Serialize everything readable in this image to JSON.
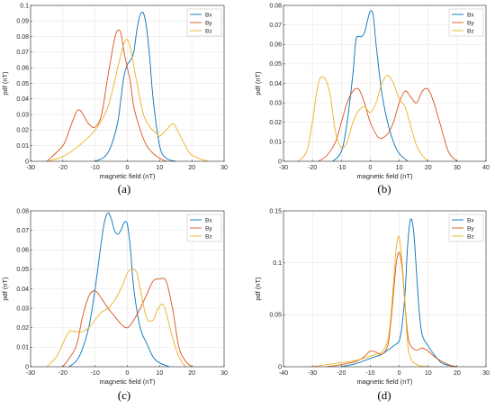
{
  "colors": {
    "Bx": "#0072BD",
    "By": "#D95319",
    "Bz": "#EDB120",
    "grid": "#e6e6e6",
    "axis": "#262626"
  },
  "chart_data": [
    {
      "type": "line",
      "panel_label": "(a)",
      "xlabel": "magnetic field (nT)",
      "ylabel": "pdf (nT)",
      "xlim": [
        -30,
        30
      ],
      "ylim": [
        0,
        0.1
      ],
      "xticks": [
        -30,
        -20,
        -10,
        0,
        10,
        20,
        30
      ],
      "yticks": [
        0,
        0.01,
        0.02,
        0.03,
        0.04,
        0.05,
        0.06,
        0.07,
        0.08,
        0.09,
        0.1
      ],
      "xtick_labels": [
        "-30",
        "-20",
        "-10",
        "0",
        "10",
        "20",
        "30"
      ],
      "ytick_labels": [
        "0",
        "0.01",
        "0.02",
        "0.03",
        "0.04",
        "0.05",
        "0.06",
        "0.07",
        "0.08",
        "0.09",
        "0.1"
      ],
      "grid": true,
      "legend_position": "top-right",
      "series": [
        {
          "name": "Bx",
          "x": [
            -10,
            -7,
            -5,
            -3,
            -2,
            -1,
            0,
            1,
            2,
            3,
            4,
            5,
            6,
            7,
            8,
            10,
            12,
            15
          ],
          "y": [
            0,
            0.003,
            0.01,
            0.025,
            0.04,
            0.055,
            0.062,
            0.065,
            0.07,
            0.085,
            0.094,
            0.095,
            0.085,
            0.065,
            0.04,
            0.01,
            0.002,
            0
          ]
        },
        {
          "name": "By",
          "x": [
            -25,
            -20,
            -18,
            -16,
            -15,
            -14,
            -12,
            -10,
            -8,
            -6,
            -4,
            -3,
            -2,
            -1,
            0,
            1,
            2,
            4,
            6,
            8,
            10,
            12
          ],
          "y": [
            0,
            0.01,
            0.02,
            0.031,
            0.033,
            0.031,
            0.024,
            0.022,
            0.03,
            0.055,
            0.078,
            0.084,
            0.082,
            0.07,
            0.06,
            0.05,
            0.035,
            0.02,
            0.01,
            0.005,
            0.002,
            0
          ]
        },
        {
          "name": "Bz",
          "x": [
            -25,
            -20,
            -15,
            -10,
            -6,
            -3,
            -2,
            -1,
            0,
            1,
            3,
            5,
            7,
            9,
            10,
            12,
            14,
            15,
            18,
            20,
            25
          ],
          "y": [
            0,
            0.003,
            0.01,
            0.02,
            0.035,
            0.06,
            0.068,
            0.076,
            0.078,
            0.072,
            0.05,
            0.03,
            0.022,
            0.018,
            0.016,
            0.02,
            0.024,
            0.022,
            0.01,
            0.004,
            0
          ]
        }
      ]
    },
    {
      "type": "line",
      "panel_label": "(b)",
      "xlabel": "magnetic field (nT)",
      "ylabel": "pdf (nT)",
      "xlim": [
        -30,
        40
      ],
      "ylim": [
        0,
        0.08
      ],
      "xticks": [
        -30,
        -20,
        -10,
        0,
        10,
        20,
        30,
        40
      ],
      "yticks": [
        0,
        0.01,
        0.02,
        0.03,
        0.04,
        0.05,
        0.06,
        0.07,
        0.08
      ],
      "xtick_labels": [
        "-30",
        "-20",
        "-10",
        "0",
        "10",
        "20",
        "30",
        "40"
      ],
      "ytick_labels": [
        "0",
        "0.01",
        "0.02",
        "0.03",
        "0.04",
        "0.05",
        "0.06",
        "0.07",
        "0.08"
      ],
      "grid": true,
      "legend_position": "top-right",
      "series": [
        {
          "name": "Bx",
          "x": [
            -13,
            -10,
            -8,
            -6,
            -5,
            -4,
            -3,
            -2,
            -1,
            0,
            1,
            2,
            4,
            6,
            8,
            10,
            13
          ],
          "y": [
            0,
            0.005,
            0.02,
            0.045,
            0.062,
            0.064,
            0.064,
            0.066,
            0.072,
            0.077,
            0.075,
            0.06,
            0.035,
            0.02,
            0.01,
            0.004,
            0
          ]
        },
        {
          "name": "By",
          "x": [
            -18,
            -15,
            -12,
            -10,
            -8,
            -6,
            -4,
            -2,
            0,
            3,
            6,
            8,
            10,
            12,
            14,
            16,
            18,
            20,
            22,
            24,
            27,
            30
          ],
          "y": [
            0,
            0.003,
            0.01,
            0.02,
            0.03,
            0.036,
            0.037,
            0.03,
            0.02,
            0.012,
            0.014,
            0.02,
            0.03,
            0.036,
            0.033,
            0.03,
            0.036,
            0.037,
            0.03,
            0.02,
            0.005,
            0
          ]
        },
        {
          "name": "Bz",
          "x": [
            -25,
            -22,
            -20,
            -18,
            -16,
            -14,
            -12,
            -10,
            -8,
            -6,
            -4,
            -2,
            0,
            2,
            4,
            6,
            8,
            10,
            12,
            14,
            16,
            18,
            20
          ],
          "y": [
            0,
            0.005,
            0.02,
            0.04,
            0.043,
            0.035,
            0.015,
            0.007,
            0.01,
            0.02,
            0.026,
            0.028,
            0.025,
            0.03,
            0.04,
            0.044,
            0.04,
            0.032,
            0.028,
            0.018,
            0.008,
            0.003,
            0
          ]
        }
      ]
    },
    {
      "type": "line",
      "panel_label": "(c)",
      "xlabel": "magnetic field (nT)",
      "ylabel": "pdf (nT)",
      "xlim": [
        -30,
        30
      ],
      "ylim": [
        0,
        0.08
      ],
      "xticks": [
        -30,
        -20,
        -10,
        0,
        10,
        20,
        30
      ],
      "yticks": [
        0,
        0.01,
        0.02,
        0.03,
        0.04,
        0.05,
        0.06,
        0.07,
        0.08
      ],
      "xtick_labels": [
        "-30",
        "-20",
        "-10",
        "0",
        "10",
        "20",
        "30"
      ],
      "ytick_labels": [
        "0",
        "0.01",
        "0.02",
        "0.03",
        "0.04",
        "0.05",
        "0.06",
        "0.07",
        "0.08"
      ],
      "grid": true,
      "legend_position": "top-right",
      "series": [
        {
          "name": "Bx",
          "x": [
            -18,
            -15,
            -12,
            -10,
            -8,
            -7,
            -6,
            -5,
            -4,
            -3,
            -2,
            -1,
            0,
            1,
            2,
            4,
            6,
            8,
            10,
            13
          ],
          "y": [
            0,
            0.005,
            0.02,
            0.04,
            0.065,
            0.075,
            0.079,
            0.076,
            0.07,
            0.068,
            0.07,
            0.074,
            0.073,
            0.06,
            0.04,
            0.02,
            0.012,
            0.005,
            0.002,
            0
          ]
        },
        {
          "name": "By",
          "x": [
            -20,
            -16,
            -14,
            -12,
            -10,
            -8,
            -6,
            -4,
            -2,
            0,
            2,
            4,
            6,
            8,
            10,
            12,
            14,
            16,
            18,
            20
          ],
          "y": [
            0,
            0.01,
            0.025,
            0.036,
            0.039,
            0.035,
            0.03,
            0.026,
            0.022,
            0.02,
            0.024,
            0.03,
            0.037,
            0.044,
            0.045,
            0.044,
            0.03,
            0.01,
            0.003,
            0
          ]
        },
        {
          "name": "Bz",
          "x": [
            -25,
            -22,
            -20,
            -18,
            -16,
            -14,
            -12,
            -10,
            -8,
            -6,
            -4,
            -2,
            0,
            1,
            2,
            3,
            4,
            6,
            8,
            9,
            10,
            11,
            12,
            14,
            16,
            18
          ],
          "y": [
            0,
            0.005,
            0.012,
            0.018,
            0.018,
            0.018,
            0.02,
            0.024,
            0.028,
            0.03,
            0.034,
            0.04,
            0.048,
            0.05,
            0.05,
            0.048,
            0.04,
            0.025,
            0.024,
            0.028,
            0.031,
            0.032,
            0.028,
            0.015,
            0.005,
            0
          ]
        }
      ]
    },
    {
      "type": "line",
      "panel_label": "(d)",
      "xlabel": "magnetic field (nT)",
      "ylabel": "pdf (nT)",
      "xlim": [
        -40,
        30
      ],
      "ylim": [
        0,
        0.15
      ],
      "xticks": [
        -40,
        -30,
        -20,
        -10,
        0,
        10,
        20,
        30
      ],
      "yticks": [
        0,
        0.05,
        0.1,
        0.15
      ],
      "xtick_labels": [
        "-40",
        "-30",
        "-20",
        "-10",
        "0",
        "10",
        "20",
        "30"
      ],
      "ytick_labels": [
        "0",
        "0.05",
        "0.1",
        "0.15"
      ],
      "grid": true,
      "legend_position": "top-right",
      "series": [
        {
          "name": "Bx",
          "x": [
            -20,
            -15,
            -10,
            -6,
            -4,
            -2,
            0,
            1,
            2,
            3,
            4,
            5,
            6,
            7,
            8,
            10,
            12,
            15,
            20
          ],
          "y": [
            0,
            0.003,
            0.008,
            0.012,
            0.016,
            0.02,
            0.025,
            0.04,
            0.07,
            0.12,
            0.142,
            0.13,
            0.09,
            0.05,
            0.03,
            0.02,
            0.012,
            0.003,
            0
          ]
        },
        {
          "name": "By",
          "x": [
            -25,
            -20,
            -15,
            -12,
            -10,
            -8,
            -6,
            -4,
            -3,
            -2,
            -1,
            0,
            1,
            2,
            3,
            4,
            6,
            8,
            10,
            13,
            17,
            20
          ],
          "y": [
            0,
            0.002,
            0.005,
            0.01,
            0.015,
            0.014,
            0.012,
            0.02,
            0.04,
            0.07,
            0.1,
            0.11,
            0.095,
            0.06,
            0.03,
            0.02,
            0.016,
            0.018,
            0.015,
            0.008,
            0.002,
            0
          ]
        },
        {
          "name": "Bz",
          "x": [
            -30,
            -25,
            -20,
            -15,
            -10,
            -8,
            -6,
            -4,
            -3,
            -2,
            -1,
            0,
            1,
            2,
            3,
            4,
            5,
            7,
            10
          ],
          "y": [
            0,
            0.002,
            0.004,
            0.006,
            0.01,
            0.012,
            0.014,
            0.025,
            0.045,
            0.08,
            0.115,
            0.125,
            0.1,
            0.06,
            0.02,
            0.008,
            0.004,
            0.001,
            0
          ]
        }
      ]
    }
  ]
}
